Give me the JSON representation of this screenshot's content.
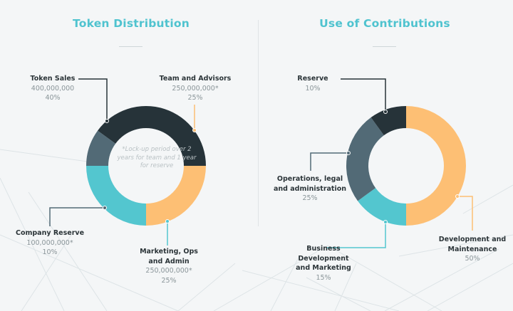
{
  "colors": {
    "dark": "#263339",
    "orange": "#fdbf74",
    "teal": "#53c6cf",
    "slate": "#526a76",
    "title": "#4fc3cf"
  },
  "token_distribution": {
    "title": "Token Distribution",
    "note": "*Lock-up period over 2 years for team and 1 year for reserve",
    "slices": [
      {
        "name": "Token Sales",
        "amount": "400,000,000",
        "percent": "40%"
      },
      {
        "name": "Team and Advisors",
        "amount": "250,000,000*",
        "percent": "25%"
      },
      {
        "name_line1": "Marketing, Ops",
        "name_line2": "and Admin",
        "amount": "250,000,000*",
        "percent": "25%"
      },
      {
        "name": "Company Reserve",
        "amount": "100,000,000*",
        "percent": "10%"
      }
    ]
  },
  "use_of_contributions": {
    "title": "Use of Contributions",
    "slices": [
      {
        "name": "Reserve",
        "percent": "10%"
      },
      {
        "name_line1": "Development and",
        "name_line2": "Maintenance",
        "percent": "50%"
      },
      {
        "name_line1": "Business",
        "name_line2": "Development",
        "name_line3": "and Marketing",
        "percent": "15%"
      },
      {
        "name_line1": "Operations, legal",
        "name_line2": "and administration",
        "percent": "25%"
      }
    ]
  },
  "chart_data": [
    {
      "type": "pie",
      "title": "Token Distribution",
      "categories": [
        "Token Sales",
        "Team and Advisors",
        "Marketing, Ops and Admin",
        "Company Reserve"
      ],
      "values": [
        40,
        25,
        25,
        10
      ],
      "amounts": [
        400000000,
        250000000,
        250000000,
        100000000
      ],
      "colors": [
        "#263339",
        "#fdbf74",
        "#53c6cf",
        "#526a76"
      ],
      "start_angle_deg": -54
    },
    {
      "type": "pie",
      "title": "Use of Contributions",
      "categories": [
        "Development and Maintenance",
        "Business Development and Marketing",
        "Operations, legal and administration",
        "Reserve"
      ],
      "values": [
        50,
        15,
        25,
        10
      ],
      "colors": [
        "#fdbf74",
        "#53c6cf",
        "#526a76",
        "#263339"
      ],
      "start_angle_deg": 0
    }
  ]
}
